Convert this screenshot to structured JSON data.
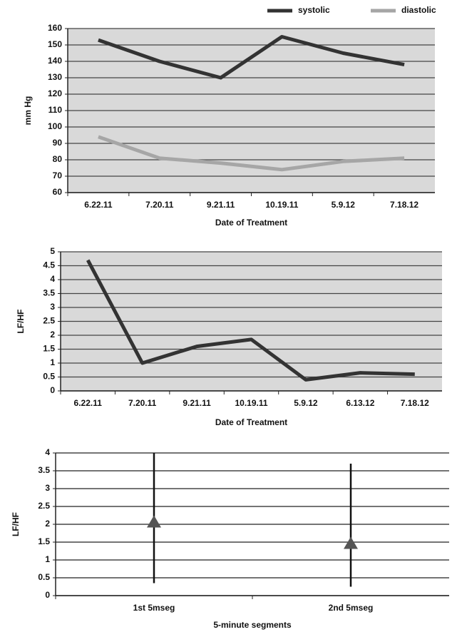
{
  "chart_data": [
    {
      "type": "line",
      "categories": [
        "6.22.11",
        "7.20.11",
        "9.21.11",
        "10.19.11",
        "5.9.12",
        "7.18.12"
      ],
      "series": [
        {
          "name": "systolic",
          "color": "#333333",
          "values": [
            153,
            140,
            130,
            155,
            145,
            138
          ]
        },
        {
          "name": "diastolic",
          "color": "#a6a6a6",
          "values": [
            94,
            81,
            78,
            74,
            79,
            81
          ]
        }
      ],
      "ylim": [
        60,
        160
      ],
      "yticks": [
        60,
        70,
        80,
        90,
        100,
        110,
        120,
        130,
        140,
        150,
        160
      ],
      "y_label": "mm Hg",
      "x_label": "Date of Treatment",
      "grid": true,
      "plot_background": "#d9d9d9",
      "legend": "top-right"
    },
    {
      "type": "line",
      "categories": [
        "6.22.11",
        "7.20.11",
        "9.21.11",
        "10.19.11",
        "5.9.12",
        "6.13.12",
        "7.18.12"
      ],
      "values": [
        4.7,
        1.0,
        1.6,
        1.85,
        0.4,
        0.65,
        0.6
      ],
      "color": "#333333",
      "ylim": [
        0,
        5
      ],
      "yticks": [
        0,
        0.5,
        1,
        1.5,
        2,
        2.5,
        3,
        3.5,
        4,
        4.5,
        5
      ],
      "y_label": "LF/HF",
      "x_label": "Date of Treatment",
      "grid": true,
      "plot_background": "#d9d9d9"
    },
    {
      "type": "errorbar",
      "categories": [
        "1st 5mseg",
        "2nd 5mseg"
      ],
      "values": [
        2.05,
        1.45
      ],
      "lower": [
        0.35,
        0.25
      ],
      "upper": [
        4,
        3.7
      ],
      "color": "#555555",
      "ylim": [
        0,
        4
      ],
      "yticks": [
        0,
        0.5,
        1,
        1.5,
        2,
        2.5,
        3,
        3.5,
        4
      ],
      "y_label": "LF/HF",
      "x_label": "5-minute segments",
      "grid": true
    }
  ]
}
